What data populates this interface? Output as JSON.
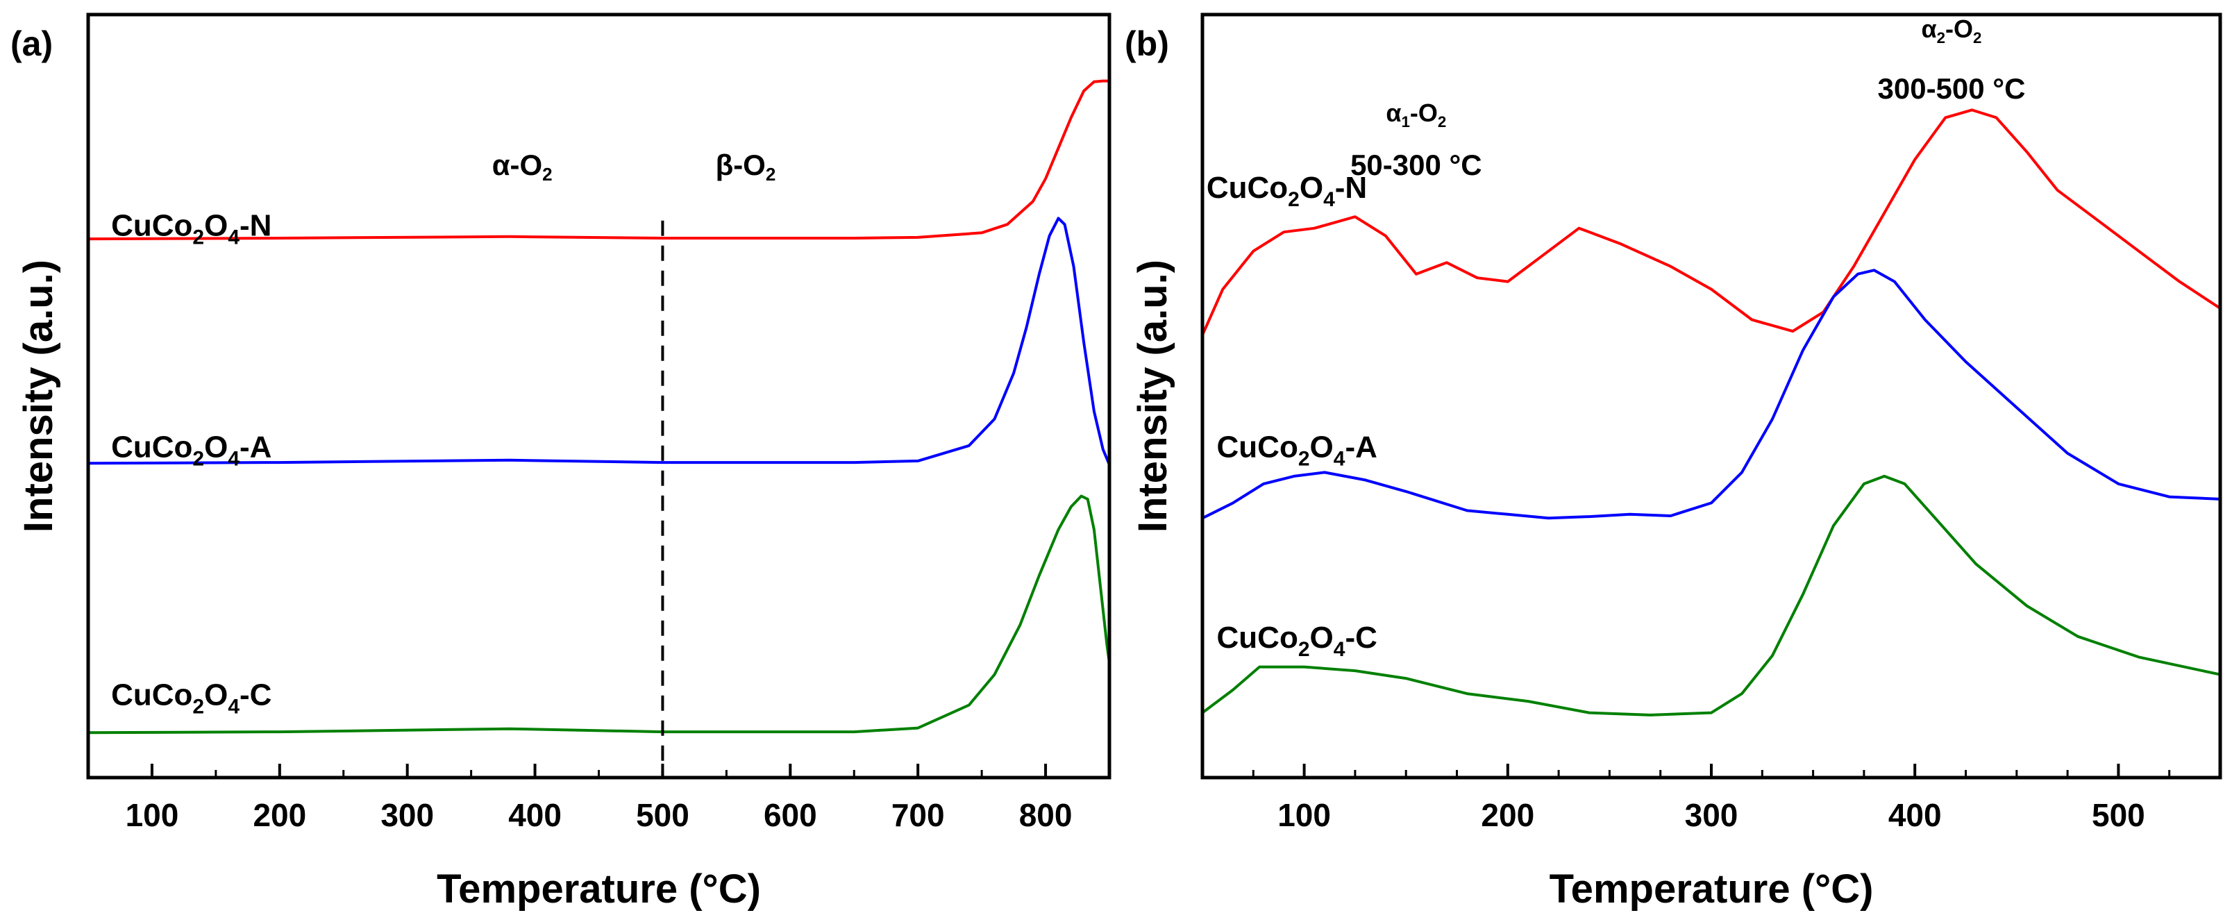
{
  "chart_data": [
    {
      "id": "a",
      "type": "line",
      "panel_label": "(a)",
      "xlabel": "Temperature (°C)",
      "ylabel": "Intensity (a.u.)",
      "xlim": [
        50,
        850
      ],
      "ylim": [
        0,
        100
      ],
      "x_ticks": [
        100,
        200,
        300,
        400,
        500,
        600,
        700,
        800
      ],
      "x_tick_labels": [
        "100",
        "200",
        "300",
        "400",
        "500",
        "600",
        "700",
        "800"
      ],
      "divider_x": 500,
      "region_labels": [
        {
          "name": "alpha-o2-label",
          "prefix": "α-O",
          "sub": "2",
          "suffix": "",
          "x": 390,
          "y": 79
        },
        {
          "name": "beta-o2-label",
          "prefix": "β-O",
          "sub": "2",
          "suffix": "",
          "x": 565,
          "y": 79
        }
      ],
      "series": [
        {
          "name": "CuCo2O4-N",
          "label_base": "CuCo",
          "label_sub1": "2",
          "label_mid": "O",
          "label_sub2": "4",
          "label_tail": "-N",
          "label_x": 68,
          "label_y": 71,
          "color": "#ff0000",
          "x": [
            50,
            200,
            380,
            500,
            650,
            700,
            750,
            770,
            790,
            800,
            810,
            820,
            830,
            838,
            845,
            850
          ],
          "y": [
            70.6,
            70.7,
            70.9,
            70.7,
            70.7,
            70.8,
            71.4,
            72.5,
            75.5,
            78.5,
            82.5,
            86.5,
            90.0,
            91.2,
            91.3,
            91.3
          ]
        },
        {
          "name": "CuCo2O4-A",
          "label_base": "CuCo",
          "label_sub1": "2",
          "label_mid": "O",
          "label_sub2": "4",
          "label_tail": "-A",
          "label_x": 68,
          "label_y": 42,
          "color": "#0000ff",
          "x": [
            50,
            200,
            380,
            500,
            650,
            700,
            740,
            760,
            775,
            785,
            795,
            803,
            810,
            815,
            822,
            830,
            838,
            845,
            850
          ],
          "y": [
            41.2,
            41.3,
            41.6,
            41.3,
            41.3,
            41.5,
            43.5,
            47.0,
            53.0,
            59.0,
            66.0,
            71.0,
            73.3,
            72.5,
            67.0,
            57.0,
            48.0,
            43.0,
            41.0
          ]
        },
        {
          "name": "CuCo2O4-C",
          "label_base": "CuCo",
          "label_sub1": "2",
          "label_mid": "O",
          "label_sub2": "4",
          "label_tail": "-C",
          "label_x": 68,
          "label_y": 9.5,
          "color": "#008000",
          "x": [
            50,
            200,
            380,
            500,
            650,
            700,
            740,
            760,
            780,
            795,
            810,
            820,
            828,
            833,
            838,
            843,
            848,
            850
          ],
          "y": [
            5.9,
            6.0,
            6.4,
            6.0,
            6.0,
            6.5,
            9.5,
            13.5,
            20.0,
            26.5,
            32.5,
            35.5,
            36.9,
            36.5,
            32.5,
            25.0,
            17.5,
            15.0
          ]
        }
      ]
    },
    {
      "id": "b",
      "type": "line",
      "panel_label": "(b)",
      "xlabel": "Temperature (°C)",
      "ylabel": "Intensity (a.u.)",
      "xlim": [
        50,
        550
      ],
      "ylim": [
        0,
        100
      ],
      "x_ticks": [
        100,
        200,
        300,
        400,
        500
      ],
      "x_tick_labels": [
        "100",
        "200",
        "300",
        "400",
        "500"
      ],
      "region_labels": [
        {
          "name": "alpha1-o2-label",
          "prefix": "α",
          "sub": "1",
          "suffix": "-O",
          "sub2": "2",
          "x": 155,
          "y": 86,
          "small": true
        },
        {
          "name": "alpha1-range-label",
          "prefix": "50-300 °C",
          "sub": "",
          "suffix": "",
          "x": 155,
          "y": 79
        },
        {
          "name": "alpha2-o2-label",
          "prefix": "α",
          "sub": "2",
          "suffix": "-O",
          "sub2": "2",
          "x": 418,
          "y": 97,
          "small": true
        },
        {
          "name": "alpha2-range-label",
          "prefix": "300-500 °C",
          "sub": "",
          "suffix": "",
          "x": 418,
          "y": 89
        }
      ],
      "series": [
        {
          "name": "CuCo2O4-N",
          "label_base": "CuCo",
          "label_sub1": "2",
          "label_mid": "O",
          "label_sub2": "4",
          "label_tail": "-N",
          "label_x": 52,
          "label_y": 76,
          "color": "#ff0000",
          "x": [
            50,
            60,
            75,
            90,
            105,
            125,
            140,
            155,
            170,
            185,
            200,
            215,
            235,
            255,
            280,
            300,
            320,
            340,
            355,
            370,
            385,
            400,
            415,
            428,
            440,
            455,
            470,
            490,
            510,
            530,
            550
          ],
          "y": [
            58,
            64,
            69,
            71.5,
            72,
            73.5,
            71,
            66,
            67.5,
            65.5,
            65,
            68,
            72,
            70,
            67,
            64,
            60,
            58.5,
            61,
            67,
            74,
            81,
            86.5,
            87.5,
            86.5,
            82,
            77,
            73,
            69,
            65,
            61.5
          ]
        },
        {
          "name": "CuCo2O4-A",
          "label_base": "CuCo",
          "label_sub1": "2",
          "label_mid": "O",
          "label_sub2": "4",
          "label_tail": "-A",
          "label_x": 57,
          "label_y": 42,
          "color": "#0000ff",
          "x": [
            50,
            65,
            80,
            95,
            110,
            130,
            150,
            180,
            200,
            220,
            240,
            260,
            280,
            300,
            315,
            330,
            345,
            360,
            372,
            380,
            390,
            405,
            425,
            450,
            475,
            500,
            525,
            550
          ],
          "y": [
            34,
            36,
            38.5,
            39.5,
            40,
            39,
            37.5,
            35,
            34.5,
            34,
            34.2,
            34.5,
            34.3,
            36,
            40,
            47,
            56,
            63,
            66,
            66.5,
            65,
            60,
            54.5,
            48.5,
            42.5,
            38.5,
            36.8,
            36.5
          ]
        },
        {
          "name": "CuCo2O4-C",
          "label_base": "CuCo",
          "label_sub1": "2",
          "label_mid": "O",
          "label_sub2": "4",
          "label_tail": "-C",
          "label_x": 57,
          "label_y": 17,
          "color": "#008000",
          "x": [
            50,
            65,
            78,
            100,
            125,
            150,
            180,
            210,
            240,
            270,
            300,
            315,
            330,
            345,
            360,
            375,
            385,
            395,
            410,
            430,
            455,
            480,
            510,
            550
          ],
          "y": [
            8.5,
            11.5,
            14.5,
            14.5,
            14,
            13,
            11,
            10,
            8.5,
            8.2,
            8.5,
            11,
            16,
            24,
            33,
            38.5,
            39.5,
            38.5,
            34,
            28,
            22.5,
            18.5,
            15.8,
            13.5
          ]
        }
      ]
    }
  ]
}
